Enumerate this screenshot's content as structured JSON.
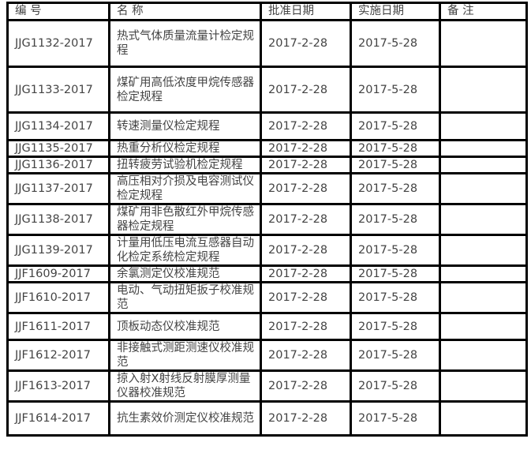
{
  "headers": {
    "code": "编 号",
    "name": "名 称",
    "approve": "批准日期",
    "implement": "实施日期",
    "remark": "备 注"
  },
  "rows": [
    {
      "code": "JJG1132-2017",
      "name": "热式气体质量流量计检定规程",
      "approve": "2017-2-28",
      "implement": "2017-5-28",
      "remark": ""
    },
    {
      "code": "JJG1133-2017",
      "name": "煤矿用高低浓度甲烷传感器检定规程",
      "approve": "2017-2-28",
      "implement": "2017-5-28",
      "remark": ""
    },
    {
      "code": "JJG1134-2017",
      "name": "转速测量仪检定规程",
      "approve": "2017-2-28",
      "implement": "2017-5-28",
      "remark": ""
    },
    {
      "code": "JJG1135-2017",
      "name": "热重分析仪检定规程",
      "approve": "2017-2-28",
      "implement": "2017-5-28",
      "remark": ""
    },
    {
      "code": "JJG1136-2017",
      "name": "扭转疲劳试验机检定规程",
      "approve": "2017-2-28",
      "implement": "2017-5-28",
      "remark": ""
    },
    {
      "code": "JJG1137-2017",
      "name": "高压相对介损及电容测试仪检定规程",
      "approve": "2017-2-28",
      "implement": "2017-5-28",
      "remark": ""
    },
    {
      "code": "JJG1138-2017",
      "name": "煤矿用非色散红外甲烷传感器检定规程",
      "approve": "2017-2-28",
      "implement": "2017-5-28",
      "remark": ""
    },
    {
      "code": "JJG1139-2017",
      "name": "计量用低压电流互感器自动化检定系统检定规程",
      "approve": "2017-2-28",
      "implement": "2017-5-28",
      "remark": ""
    },
    {
      "code": "JJF1609-2017",
      "name": "余氯测定仪校准规范",
      "approve": "2017-2-28",
      "implement": "2017-5-28",
      "remark": ""
    },
    {
      "code": "JJF1610-2017",
      "name": "电动、气动扭矩扳子校准规范",
      "approve": "2017-2-28",
      "implement": "2017-5-28",
      "remark": ""
    },
    {
      "code": "JJF1611-2017",
      "name": "顶板动态仪校准规范",
      "approve": "2017-2-28",
      "implement": "2017-5-28",
      "remark": ""
    },
    {
      "code": "JJF1612-2017",
      "name": "非接触式测距测速仪校准规范",
      "approve": "2017-2-28",
      "implement": "2017-5-28",
      "remark": ""
    },
    {
      "code": "JJF1613-2017",
      "name": "掠入射X射线反射膜厚测量仪器校准规范",
      "approve": "2017-2-28",
      "implement": "2017-5-28",
      "remark": ""
    },
    {
      "code": "JJF1614-2017",
      "name": "抗生素效价测定仪校准规范",
      "approve": "2017-2-28",
      "implement": "2017-5-28",
      "remark": ""
    }
  ]
}
